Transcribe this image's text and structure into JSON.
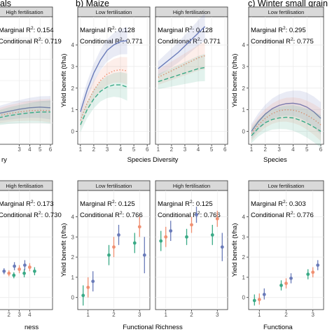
{
  "chart_data": [
    {
      "panel": "a",
      "type": "line",
      "title": "als",
      "facets": [
        {
          "strip": "High fertilisation",
          "marginal_label": "Marginal R²:",
          "marginal_value": "0.154",
          "conditional_label": "Conditional R²:",
          "conditional_value": "0.719",
          "series": [
            {
              "color": "#6a7bb9",
              "dash": "solid",
              "x": [
                1,
                2,
                3,
                4,
                5,
                6
              ],
              "y": [
                0.45,
                0.55,
                0.65,
                0.72,
                0.75,
                0.72
              ]
            },
            {
              "color": "#f09072",
              "dash": "dot",
              "x": [
                1,
                2,
                3,
                4,
                5,
                6
              ],
              "y": [
                0.35,
                0.45,
                0.52,
                0.58,
                0.6,
                0.58
              ]
            },
            {
              "color": "#3aaa86",
              "dash": "dashed",
              "x": [
                1,
                2,
                3,
                4,
                5,
                6
              ],
              "y": [
                0.25,
                0.35,
                0.42,
                0.48,
                0.52,
                0.52
              ]
            }
          ]
        }
      ],
      "xticks": [
        "3",
        "4",
        "5",
        "6"
      ],
      "xlabel": "ry",
      "ylabel": "",
      "ylim": [
        -1,
        5
      ]
    },
    {
      "panel": "b",
      "type": "line",
      "title": "b) Maize",
      "facets": [
        {
          "strip": "Low fertilisation",
          "marginal_label": "Marginal R²:",
          "marginal_value": "0.128",
          "conditional_label": "Conditional R²:",
          "conditional_value": "0.771",
          "series": [
            {
              "color": "#6a7bb9",
              "dash": "solid",
              "x": [
                1,
                1.5,
                2,
                2.5,
                3,
                3.5,
                4,
                4.5
              ],
              "y": [
                0.9,
                1.9,
                2.7,
                3.3,
                3.75,
                4.0,
                4.15,
                4.2
              ]
            },
            {
              "color": "#f09072",
              "dash": "dot",
              "x": [
                1,
                1.5,
                2,
                2.5,
                3,
                3.5,
                4,
                4.5
              ],
              "y": [
                0.5,
                1.3,
                1.9,
                2.35,
                2.65,
                2.8,
                2.85,
                2.8
              ]
            },
            {
              "color": "#3aaa86",
              "dash": "dashed",
              "x": [
                1,
                1.5,
                2,
                2.5,
                3,
                3.5,
                4,
                4.5
              ],
              "y": [
                0.3,
                1.0,
                1.5,
                1.85,
                2.05,
                2.15,
                2.15,
                2.05
              ]
            }
          ]
        },
        {
          "strip": "High fertilisation",
          "marginal_label": "Marginal R²:",
          "marginal_value": "0.128",
          "conditional_label": "Conditional R²:",
          "conditional_value": "0.771",
          "series": [
            {
              "color": "#6a7bb9",
              "dash": "solid",
              "x": [
                1,
                1.5,
                2,
                2.5,
                3,
                3.5,
                4,
                4.5
              ],
              "y": [
                2.9,
                3.15,
                3.4,
                3.65,
                3.95,
                4.25,
                4.55,
                4.85
              ]
            },
            {
              "color": "#f09072",
              "dash": "dot",
              "x": [
                1,
                1.5,
                2,
                2.5,
                3,
                3.5,
                4,
                4.5
              ],
              "y": [
                2.5,
                2.65,
                2.8,
                2.95,
                3.1,
                3.25,
                3.4,
                3.5
              ]
            },
            {
              "color": "#3aaa86",
              "dash": "dashed",
              "x": [
                1,
                1.5,
                2,
                2.5,
                3,
                3.5,
                4,
                4.5
              ],
              "y": [
                2.3,
                2.4,
                2.5,
                2.6,
                2.7,
                2.8,
                2.9,
                2.95
              ]
            }
          ]
        }
      ],
      "xticks": [
        "1",
        "2",
        "3",
        "4",
        "5",
        "6"
      ],
      "yticks": [
        "0",
        "1",
        "2",
        "3",
        "4"
      ],
      "xlabel": "Species Diversity",
      "ylabel": "Yield benefit (t/ha)",
      "xlim": [
        0.8,
        6.2
      ],
      "ylim": [
        -0.6,
        5.3
      ]
    },
    {
      "panel": "c",
      "type": "line",
      "title": "c) Winter small grain",
      "facets": [
        {
          "strip": "Low fertilisation",
          "marginal_label": "Marginal R²:",
          "marginal_value": "0.295",
          "conditional_label": "Conditional R²:",
          "conditional_value": "0.775",
          "series": [
            {
              "color": "#6a7bb9",
              "dash": "solid",
              "x": [
                1,
                1.5,
                2,
                2.5,
                3,
                3.5,
                4,
                4.5,
                5,
                5.5,
                6
              ],
              "y": [
                0.0,
                0.45,
                0.8,
                1.05,
                1.2,
                1.28,
                1.3,
                1.25,
                1.12,
                0.9,
                0.6
              ]
            },
            {
              "color": "#f09072",
              "dash": "dot",
              "x": [
                1,
                1.5,
                2,
                2.5,
                3,
                3.5,
                4,
                4.5,
                5,
                5.5,
                6
              ],
              "y": [
                -0.1,
                0.3,
                0.6,
                0.82,
                0.95,
                1.0,
                0.98,
                0.9,
                0.75,
                0.55,
                0.3
              ]
            },
            {
              "color": "#3aaa86",
              "dash": "dashed",
              "x": [
                1,
                1.5,
                2,
                2.5,
                3,
                3.5,
                4,
                4.5,
                5,
                5.5,
                6
              ],
              "y": [
                -0.2,
                0.15,
                0.4,
                0.55,
                0.62,
                0.65,
                0.62,
                0.52,
                0.38,
                0.2,
                0.0
              ]
            }
          ]
        }
      ],
      "xticks": [
        "1",
        "2",
        "3",
        "4",
        "5",
        "6"
      ],
      "yticks": [
        "0",
        "1",
        "2",
        "3",
        "4"
      ],
      "xlabel": "Species",
      "ylabel": "Yield benefit (t/ha)",
      "xlim": [
        0.8,
        6.2
      ],
      "ylim": [
        -0.6,
        5.3
      ]
    },
    {
      "panel": "d",
      "type": "scatter",
      "facets": [
        {
          "strip": "High fertilisation",
          "marginal_label": "Marginal R²:",
          "marginal_value": "0.173",
          "conditional_label": "Conditional R²:",
          "conditional_value": "0.730",
          "groups": [
            {
              "x": 2,
              "points": [
                {
                  "c": "#6a7bb9",
                  "y": 1.3,
                  "lo": 1.15,
                  "hi": 1.45
                },
                {
                  "c": "#f09072",
                  "y": 1.2,
                  "lo": 1.05,
                  "hi": 1.35
                },
                {
                  "c": "#3aaa86",
                  "y": 1.1,
                  "lo": 0.95,
                  "hi": 1.25
                }
              ]
            },
            {
              "x": 3,
              "points": [
                {
                  "c": "#6a7bb9",
                  "y": 1.55,
                  "lo": 1.35,
                  "hi": 1.75
                },
                {
                  "c": "#f09072",
                  "y": 1.4,
                  "lo": 1.2,
                  "hi": 1.6
                },
                {
                  "c": "#3aaa86",
                  "y": 1.2,
                  "lo": 1.0,
                  "hi": 1.4
                }
              ]
            },
            {
              "x": 4,
              "points": [
                {
                  "c": "#6a7bb9",
                  "y": 1.6,
                  "lo": 1.35,
                  "hi": 1.85
                },
                {
                  "c": "#f09072",
                  "y": 1.5,
                  "lo": 1.3,
                  "hi": 1.7
                },
                {
                  "c": "#3aaa86",
                  "y": 1.3,
                  "lo": 1.1,
                  "hi": 1.5
                }
              ]
            }
          ]
        }
      ],
      "xticks": [
        "2",
        "3",
        "4"
      ],
      "xlabel": "ness",
      "ylim": [
        -0.6,
        5.3
      ]
    },
    {
      "panel": "e",
      "type": "scatter",
      "facets": [
        {
          "strip": "Low fertilisation",
          "marginal_label": "Marginal R²:",
          "marginal_value": "0.125",
          "conditional_label": "Conditional R²:",
          "conditional_value": "0.766",
          "groups": [
            {
              "x": 1,
              "points": [
                {
                  "c": "#3aaa86",
                  "y": 0.1,
                  "lo": -0.4,
                  "hi": 0.6
                },
                {
                  "c": "#f09072",
                  "y": 0.5,
                  "lo": 0.0,
                  "hi": 1.0
                },
                {
                  "c": "#6a7bb9",
                  "y": 0.8,
                  "lo": 0.3,
                  "hi": 1.3
                }
              ]
            },
            {
              "x": 2,
              "points": [
                {
                  "c": "#3aaa86",
                  "y": 2.1,
                  "lo": 1.6,
                  "hi": 2.6
                },
                {
                  "c": "#f09072",
                  "y": 2.5,
                  "lo": 2.0,
                  "hi": 3.0
                },
                {
                  "c": "#6a7bb9",
                  "y": 3.1,
                  "lo": 2.6,
                  "hi": 3.6
                }
              ]
            },
            {
              "x": 3,
              "points": [
                {
                  "c": "#3aaa86",
                  "y": 2.7,
                  "lo": 2.2,
                  "hi": 3.2
                },
                {
                  "c": "#f09072",
                  "y": 3.5,
                  "lo": 3.0,
                  "hi": 4.0
                },
                {
                  "c": "#6a7bb9",
                  "y": 2.1,
                  "lo": 1.2,
                  "hi": 3.0
                }
              ]
            }
          ]
        },
        {
          "strip": "High fertilisation",
          "marginal_label": "Marginal R²:",
          "marginal_value": "0.125",
          "conditional_label": "Conditional R²:",
          "conditional_value": "0.766",
          "groups": [
            {
              "x": 1,
              "points": [
                {
                  "c": "#3aaa86",
                  "y": 2.8,
                  "lo": 2.3,
                  "hi": 3.3
                },
                {
                  "c": "#f09072",
                  "y": 3.0,
                  "lo": 2.5,
                  "hi": 3.5
                },
                {
                  "c": "#6a7bb9",
                  "y": 3.3,
                  "lo": 2.8,
                  "hi": 3.8
                }
              ]
            },
            {
              "x": 2,
              "points": [
                {
                  "c": "#3aaa86",
                  "y": 3.0,
                  "lo": 2.6,
                  "hi": 3.4
                },
                {
                  "c": "#f09072",
                  "y": 3.6,
                  "lo": 3.2,
                  "hi": 4.0
                },
                {
                  "c": "#6a7bb9",
                  "y": 4.1,
                  "lo": 3.7,
                  "hi": 4.5
                }
              ]
            },
            {
              "x": 3,
              "points": [
                {
                  "c": "#3aaa86",
                  "y": 3.1,
                  "lo": 2.6,
                  "hi": 3.6
                },
                {
                  "c": "#f09072",
                  "y": 3.9,
                  "lo": 3.5,
                  "hi": 4.3
                },
                {
                  "c": "#6a7bb9",
                  "y": 2.5,
                  "lo": 1.8,
                  "hi": 3.2
                }
              ]
            }
          ]
        }
      ],
      "xticks": [
        "1",
        "2",
        "3"
      ],
      "yticks": [
        "0",
        "1",
        "2",
        "3",
        "4"
      ],
      "xlabel": "Functional Richness",
      "ylabel": "Yield benefit (t/ha)",
      "xlim": [
        0.6,
        3.4
      ],
      "ylim": [
        -0.6,
        5.3
      ]
    },
    {
      "panel": "f",
      "type": "scatter",
      "facets": [
        {
          "strip": "Low fertilisation",
          "marginal_label": "Marginal R²:",
          "marginal_value": "0.303",
          "conditional_label": "Conditional R²:",
          "conditional_value": "0.776",
          "groups": [
            {
              "x": 1,
              "points": [
                {
                  "c": "#3aaa86",
                  "y": -0.15,
                  "lo": -0.4,
                  "hi": 0.15
                },
                {
                  "c": "#f09072",
                  "y": -0.1,
                  "lo": -0.35,
                  "hi": 0.2
                },
                {
                  "c": "#6a7bb9",
                  "y": 0.15,
                  "lo": -0.1,
                  "hi": 0.45
                }
              ]
            },
            {
              "x": 2,
              "points": [
                {
                  "c": "#3aaa86",
                  "y": 0.6,
                  "lo": 0.35,
                  "hi": 0.85
                },
                {
                  "c": "#f09072",
                  "y": 0.7,
                  "lo": 0.45,
                  "hi": 0.95
                },
                {
                  "c": "#6a7bb9",
                  "y": 0.95,
                  "lo": 0.7,
                  "hi": 1.2
                }
              ]
            },
            {
              "x": 3,
              "points": [
                {
                  "c": "#3aaa86",
                  "y": 1.15,
                  "lo": 0.9,
                  "hi": 1.4
                },
                {
                  "c": "#f09072",
                  "y": 1.25,
                  "lo": 1.0,
                  "hi": 1.5
                },
                {
                  "c": "#6a7bb9",
                  "y": 1.6,
                  "lo": 1.35,
                  "hi": 1.85
                }
              ]
            }
          ]
        }
      ],
      "xticks": [
        "1",
        "2",
        "3"
      ],
      "yticks": [
        "0",
        "1",
        "2",
        "3",
        "4"
      ],
      "xlabel": "Functiona",
      "ylabel": "Yield benefit (t/ha)",
      "xlim": [
        0.6,
        3.4
      ],
      "ylim": [
        -0.6,
        5.3
      ]
    }
  ]
}
